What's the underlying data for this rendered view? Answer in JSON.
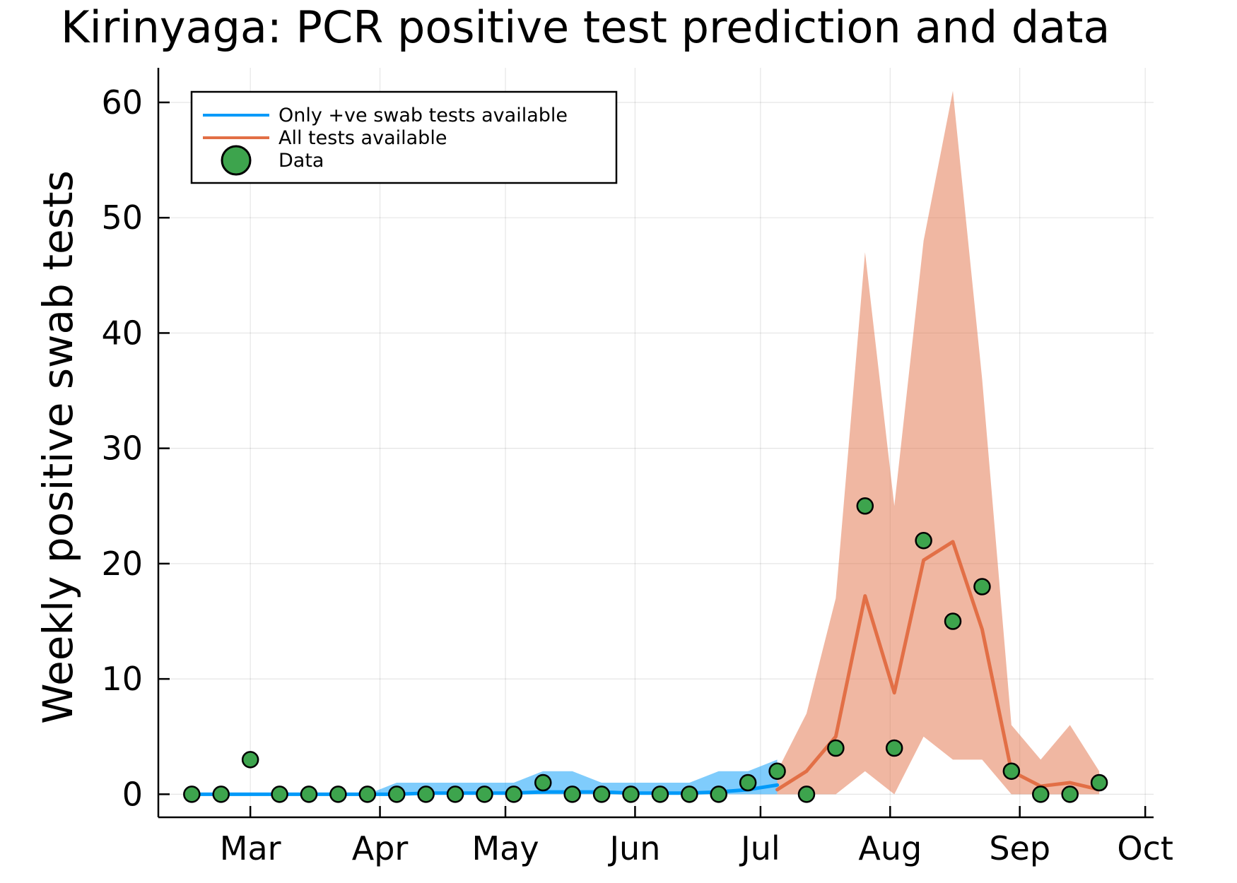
{
  "chart_data": {
    "type": "line",
    "title": "Kirinyaga: PCR positive test prediction and data",
    "xlabel": "",
    "ylabel": "Weekly positive swab tests",
    "ylim": [
      -2,
      63
    ],
    "yticks": [
      0,
      10,
      20,
      30,
      40,
      50,
      60
    ],
    "xlim": [
      "2020-02-08",
      "2020-10-03"
    ],
    "xticks": [
      {
        "date": "2020-03-01",
        "label": "Mar"
      },
      {
        "date": "2020-04-01",
        "label": "Apr"
      },
      {
        "date": "2020-05-01",
        "label": "May"
      },
      {
        "date": "2020-06-01",
        "label": "Jun"
      },
      {
        "date": "2020-07-01",
        "label": "Jul"
      },
      {
        "date": "2020-08-01",
        "label": "Aug"
      },
      {
        "date": "2020-09-01",
        "label": "Sep"
      },
      {
        "date": "2020-10-01",
        "label": "Oct"
      }
    ],
    "grid": true,
    "legend_position": "top-left",
    "series": [
      {
        "name": "Only +ve swab tests available",
        "kind": "line-with-band",
        "color": "#009af9",
        "band_color": "#009af9",
        "x": [
          "2020-02-16",
          "2020-02-23",
          "2020-03-01",
          "2020-03-08",
          "2020-03-15",
          "2020-03-22",
          "2020-03-29",
          "2020-04-05",
          "2020-04-12",
          "2020-04-19",
          "2020-04-26",
          "2020-05-03",
          "2020-05-10",
          "2020-05-17",
          "2020-05-24",
          "2020-05-31",
          "2020-06-07",
          "2020-06-14",
          "2020-06-21",
          "2020-06-28",
          "2020-07-05"
        ],
        "y": [
          0,
          0,
          0,
          0,
          0,
          0,
          0,
          0,
          0.1,
          0.1,
          0.1,
          0.1,
          0.2,
          0.2,
          0.2,
          0.1,
          0.1,
          0.1,
          0.2,
          0.4,
          0.8
        ],
        "lower": [
          0,
          0,
          0,
          0,
          0,
          0,
          0,
          0,
          0,
          0,
          0,
          0,
          0,
          0,
          0,
          0,
          0,
          0,
          0,
          0,
          0
        ],
        "upper": [
          0,
          0,
          0,
          0,
          0,
          0,
          0,
          1,
          1,
          1,
          1,
          1,
          2,
          2,
          1,
          1,
          1,
          1,
          2,
          2,
          3
        ]
      },
      {
        "name": "All tests available",
        "kind": "line-with-band",
        "color": "#e26f46",
        "band_color": "#e26f46",
        "x": [
          "2020-07-05",
          "2020-07-12",
          "2020-07-19",
          "2020-07-26",
          "2020-08-02",
          "2020-08-09",
          "2020-08-16",
          "2020-08-23",
          "2020-08-30",
          "2020-09-06",
          "2020-09-13",
          "2020-09-20"
        ],
        "y": [
          0.4,
          2,
          5,
          17.2,
          8.8,
          20.3,
          21.9,
          14.3,
          2,
          0.7,
          1,
          0.4
        ],
        "lower": [
          0,
          0,
          0,
          2,
          0,
          5,
          3,
          3,
          0,
          0,
          0,
          0
        ],
        "upper": [
          2,
          7,
          17,
          47,
          25,
          48,
          61,
          36,
          6,
          3,
          6,
          2
        ]
      },
      {
        "name": "Data",
        "kind": "scatter",
        "color": "#3da44d",
        "x": [
          "2020-02-16",
          "2020-02-23",
          "2020-03-01",
          "2020-03-08",
          "2020-03-15",
          "2020-03-22",
          "2020-03-29",
          "2020-04-05",
          "2020-04-12",
          "2020-04-19",
          "2020-04-26",
          "2020-05-03",
          "2020-05-10",
          "2020-05-17",
          "2020-05-24",
          "2020-05-31",
          "2020-06-07",
          "2020-06-14",
          "2020-06-21",
          "2020-06-28",
          "2020-07-05",
          "2020-07-12",
          "2020-07-19",
          "2020-07-26",
          "2020-08-02",
          "2020-08-09",
          "2020-08-16",
          "2020-08-23",
          "2020-08-30",
          "2020-09-06",
          "2020-09-13",
          "2020-09-20"
        ],
        "y": [
          0,
          0,
          3,
          0,
          0,
          0,
          0,
          0,
          0,
          0,
          0,
          0,
          1,
          0,
          0,
          0,
          0,
          0,
          0,
          1,
          2,
          0,
          4,
          25,
          4,
          22,
          15,
          18,
          2,
          0,
          0,
          1
        ]
      }
    ]
  }
}
